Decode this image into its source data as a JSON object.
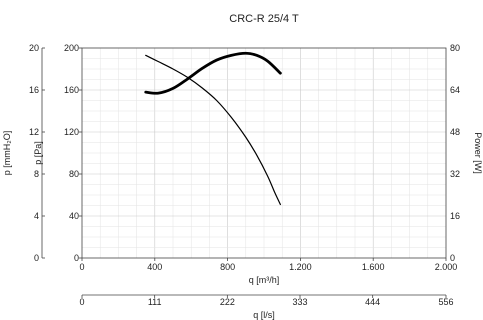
{
  "chart_data": {
    "type": "line",
    "title": "CRC-R 25/4 T",
    "x_axis_primary": {
      "label": "q [m³/h]",
      "range": [
        0,
        2000
      ],
      "ticks": [
        0,
        400,
        800,
        1200,
        1600,
        2000
      ],
      "tick_labels": [
        "0",
        "400",
        "800",
        "1.200",
        "1.600",
        "2.000"
      ]
    },
    "x_axis_secondary": {
      "label": "q [l/s]",
      "range": [
        0,
        556
      ],
      "ticks": [
        0,
        111,
        222,
        333,
        444,
        556
      ],
      "tick_labels": [
        "0",
        "111",
        "222",
        "333",
        "444",
        "556"
      ]
    },
    "y_axis_pa": {
      "label": "p [Pa]",
      "range": [
        0,
        200
      ],
      "ticks": [
        0,
        40,
        80,
        120,
        160,
        200
      ],
      "tick_labels": [
        "0",
        "40",
        "80",
        "120",
        "160",
        "200"
      ]
    },
    "y_axis_mmh2o": {
      "label": "p [mmH₂O]",
      "range": [
        0,
        20
      ],
      "ticks": [
        0,
        4,
        8,
        12,
        16,
        20
      ],
      "tick_labels": [
        "0",
        "4",
        "8",
        "12",
        "16",
        "20"
      ]
    },
    "y_axis_power": {
      "label": "Power [W]",
      "range": [
        0,
        80
      ],
      "ticks": [
        0,
        16,
        32,
        48,
        64,
        80
      ],
      "tick_labels": [
        "0",
        "16",
        "32",
        "48",
        "64",
        "80"
      ]
    },
    "grid": true,
    "series": [
      {
        "axis": "pressure",
        "color": "#000000",
        "weight": "thin",
        "points": [
          [
            350,
            193
          ],
          [
            420,
            187
          ],
          [
            500,
            180
          ],
          [
            580,
            172
          ],
          [
            660,
            162
          ],
          [
            740,
            150
          ],
          [
            820,
            134
          ],
          [
            900,
            115
          ],
          [
            960,
            98
          ],
          [
            1020,
            78
          ],
          [
            1060,
            62
          ],
          [
            1090,
            51
          ]
        ]
      },
      {
        "axis": "power",
        "color": "#000000",
        "weight": "thick",
        "points": [
          [
            350,
            63.2
          ],
          [
            420,
            62.8
          ],
          [
            500,
            64.6
          ],
          [
            580,
            68.2
          ],
          [
            660,
            72.2
          ],
          [
            740,
            75.4
          ],
          [
            820,
            77.2
          ],
          [
            900,
            78.0
          ],
          [
            960,
            77.2
          ],
          [
            1020,
            75.0
          ],
          [
            1090,
            70.4
          ]
        ]
      }
    ]
  }
}
